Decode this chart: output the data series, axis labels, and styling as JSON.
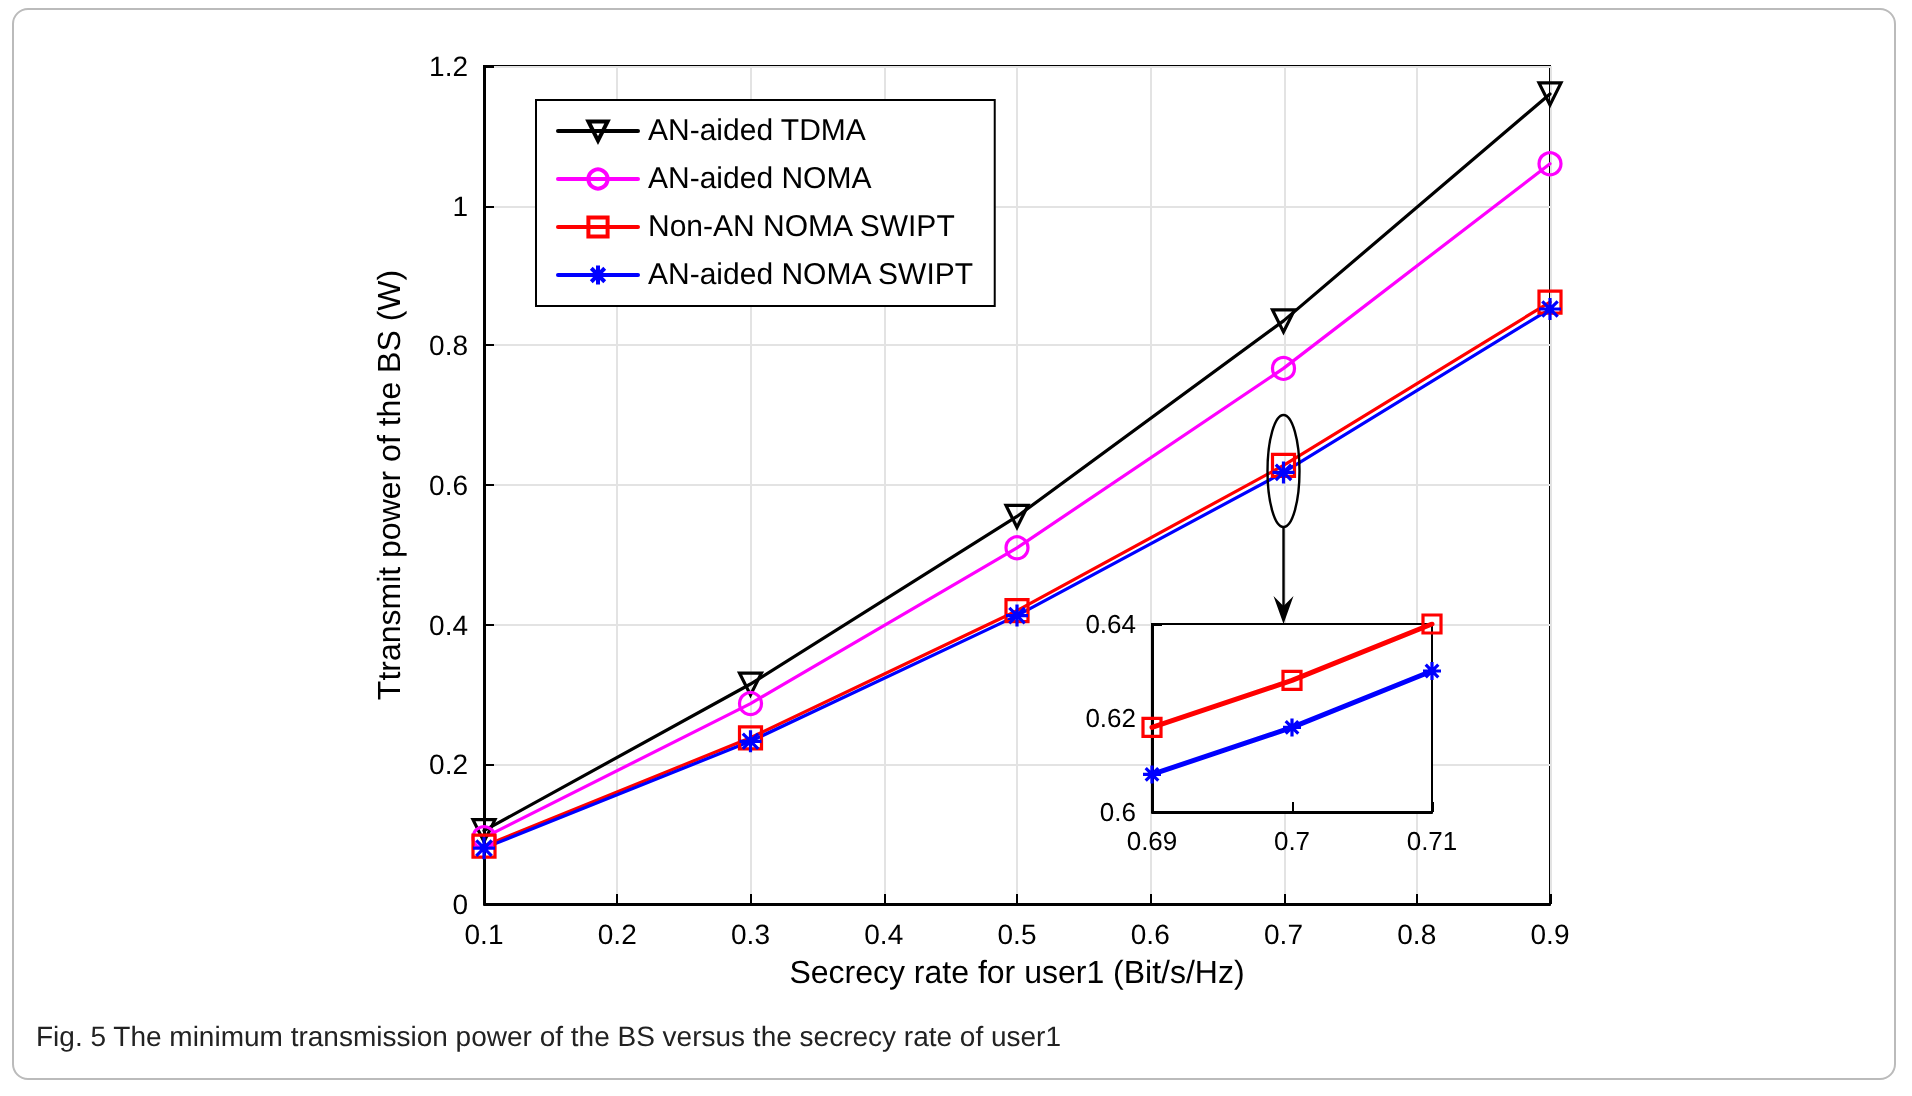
{
  "chart_data": [
    {
      "type": "line",
      "xlabel": "Secrecy rate for user1 (Bit/s/Hz)",
      "ylabel": "Ttransmit power of the BS (W)",
      "x": [
        0.1,
        0.3,
        0.5,
        0.7,
        0.9
      ],
      "series": [
        {
          "name": "AN-aided TDMA",
          "color": "#000000",
          "marker": "triangle",
          "values": [
            0.105,
            0.315,
            0.555,
            0.835,
            1.16
          ]
        },
        {
          "name": "AN-aided NOMA",
          "color": "#ff00ff",
          "marker": "circle",
          "values": [
            0.095,
            0.287,
            0.51,
            0.767,
            1.06
          ]
        },
        {
          "name": "Non-AN NOMA SWIPT",
          "color": "#ff0000",
          "marker": "square",
          "values": [
            0.083,
            0.238,
            0.42,
            0.628,
            0.862
          ]
        },
        {
          "name": "AN-aided NOMA SWIPT",
          "color": "#0000ff",
          "marker": "cross",
          "values": [
            0.08,
            0.233,
            0.413,
            0.618,
            0.852
          ]
        }
      ],
      "xlim": [
        0.1,
        0.9
      ],
      "xticks": [
        0.1,
        0.2,
        0.3,
        0.4,
        0.5,
        0.6,
        0.7,
        0.8,
        0.9
      ],
      "ylim": [
        0,
        1.2
      ],
      "yticks": [
        0,
        0.2,
        0.4,
        0.6,
        0.8,
        1,
        1.2
      ],
      "grid": true,
      "legend": "top left",
      "annotations": [
        "Fig. 5 The minimum transmission power of the BS versus the secrecy rate of user1"
      ]
    },
    {
      "type": "line",
      "x": [
        0.69,
        0.7,
        0.71
      ],
      "series": [
        {
          "color": "#ff0000",
          "marker": "square",
          "values": [
            0.618,
            0.628,
            0.64
          ]
        },
        {
          "color": "#0000ff",
          "marker": "cross",
          "values": [
            0.608,
            0.618,
            0.63
          ]
        }
      ],
      "xlim": [
        0.69,
        0.71
      ],
      "xticks": [
        0.69,
        0.7,
        0.71
      ],
      "ylim": [
        0.6,
        0.64
      ],
      "yticks": [
        0.6,
        0.62,
        0.64
      ],
      "grid": false
    }
  ]
}
